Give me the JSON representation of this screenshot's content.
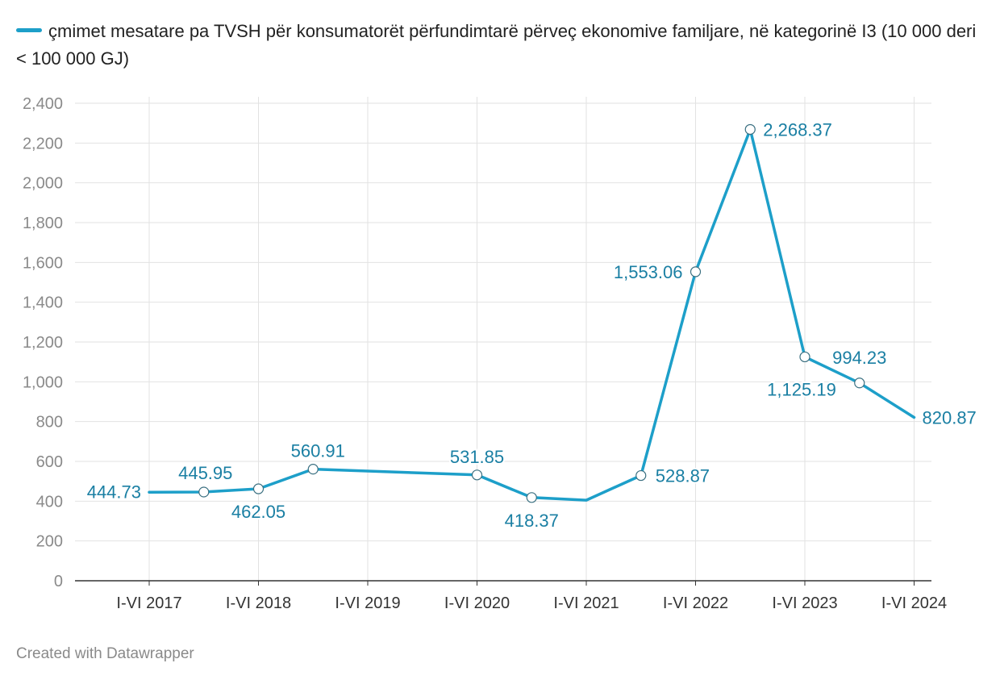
{
  "legend": {
    "series_label": "çmimet mesatare pa TVSH për konsumatorët përfundimtarë përveç ekonomive familjare, në kategorinë I3 (10 000 deri < 100 000 GJ)"
  },
  "footer": {
    "credit": "Created with Datawrapper"
  },
  "colors": {
    "series": "#1d9fc9",
    "label": "#1a7fa3",
    "grid": "#e2e2e2",
    "axis_text": "#8a8a8a",
    "tick_text": "#333333"
  },
  "chart_data": {
    "type": "line",
    "title": "",
    "xlabel": "",
    "ylabel": "",
    "ylim": [
      0,
      2400
    ],
    "yticks": [
      0,
      200,
      400,
      600,
      800,
      1000,
      1200,
      1400,
      1600,
      1800,
      2000,
      2200,
      2400
    ],
    "ytick_labels": [
      "0",
      "200",
      "400",
      "600",
      "800",
      "1,000",
      "1,200",
      "1,400",
      "1,600",
      "1,800",
      "2,000",
      "2,200",
      "2,400"
    ],
    "xtick_labels": [
      "I-VI 2017",
      "I-VI 2018",
      "I-VI 2019",
      "I-VI 2020",
      "I-VI 2021",
      "I-VI 2022",
      "I-VI 2023",
      "I-VI 2024"
    ],
    "grid": true,
    "legend_position": "top-left",
    "series": [
      {
        "name": "çmimet mesatare pa TVSH për konsumatorët përfundimtarë përveç ekonomive familjare, në kategorinë I3 (10 000 deri < 100 000 GJ)",
        "points": [
          {
            "x": 0.0,
            "y": 444.73,
            "label": "444.73",
            "marker": false
          },
          {
            "x": 0.5,
            "y": 445.95,
            "label": "445.95",
            "marker": true
          },
          {
            "x": 1.0,
            "y": 462.05,
            "label": "462.05",
            "marker": true
          },
          {
            "x": 1.5,
            "y": 560.91,
            "label": "560.91",
            "marker": true
          },
          {
            "x": 3.0,
            "y": 531.85,
            "label": "531.85",
            "marker": true
          },
          {
            "x": 3.5,
            "y": 418.37,
            "label": "418.37",
            "marker": true
          },
          {
            "x": 4.0,
            "y": 405.0,
            "label": "",
            "marker": false
          },
          {
            "x": 4.5,
            "y": 528.87,
            "label": "528.87",
            "marker": true
          },
          {
            "x": 5.0,
            "y": 1553.06,
            "label": "1,553.06",
            "marker": true
          },
          {
            "x": 5.5,
            "y": 2268.37,
            "label": "2,268.37",
            "marker": true
          },
          {
            "x": 6.0,
            "y": 1125.19,
            "label": "1,125.19",
            "marker": true
          },
          {
            "x": 6.5,
            "y": 994.23,
            "label": "994.23",
            "marker": true
          },
          {
            "x": 7.0,
            "y": 820.87,
            "label": "820.87",
            "marker": false
          }
        ]
      }
    ]
  }
}
